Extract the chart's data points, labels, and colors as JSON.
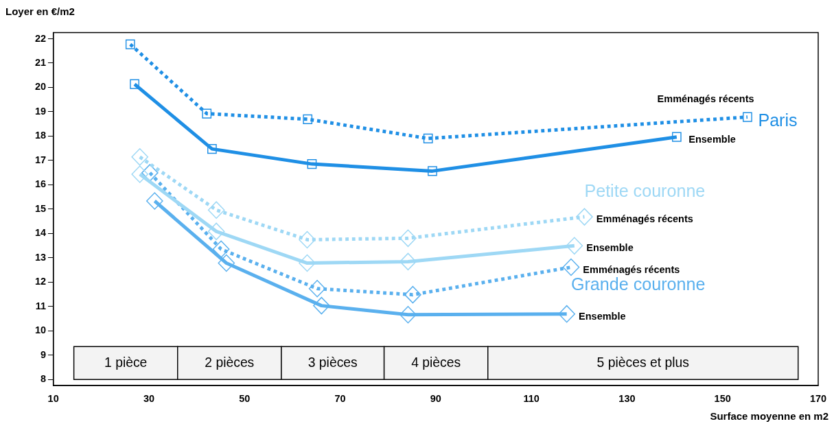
{
  "chart_data": {
    "type": "line",
    "xlabel": "Surface moyenne en m2",
    "ylabel": "Loyer en €/m2",
    "xlim": [
      10,
      170
    ],
    "xticks": [
      10,
      30,
      50,
      70,
      90,
      110,
      130,
      150,
      170
    ],
    "ylim": [
      7.75,
      22.25
    ],
    "yticks": [
      8,
      9,
      10,
      11,
      12,
      13,
      14,
      15,
      16,
      17,
      18,
      19,
      20,
      21,
      22
    ],
    "grid": false,
    "legend": false,
    "series": [
      {
        "name": "Emménagés récents",
        "color": "#1f8fe5",
        "marker": "square",
        "line_style": "dotted",
        "x": [
          26.1,
          42.1,
          63.2,
          88.4,
          155.2
        ],
        "values": [
          21.77,
          18.92,
          18.69,
          17.9,
          18.78
        ]
      },
      {
        "name": "Ensemble",
        "color": "#1f8fe5",
        "marker": "square",
        "line_style": "solid",
        "x": [
          27.0,
          43.2,
          64.1,
          89.3,
          140.4
        ],
        "values": [
          20.13,
          17.47,
          16.85,
          16.56,
          17.96
        ]
      },
      {
        "name": "Emménagés récents",
        "color": "#9ed8f5",
        "marker": "diamond",
        "line_style": "dotted",
        "x": [
          28.1,
          44.1,
          63.1,
          84.2,
          121.1
        ],
        "values": [
          17.14,
          14.96,
          13.74,
          13.8,
          14.68
        ]
      },
      {
        "name": "Ensemble",
        "color": "#9ed8f5",
        "marker": "diamond",
        "line_style": "solid",
        "x": [
          28.1,
          44.1,
          63.1,
          84.2,
          119.0
        ],
        "values": [
          16.43,
          14.08,
          12.78,
          12.84,
          13.49
        ]
      },
      {
        "name": "Emménagés récents",
        "color": "#5ab0ee",
        "marker": "diamond",
        "line_style": "dotted",
        "x": [
          30.2,
          45.1,
          65.2,
          85.2,
          118.3
        ],
        "values": [
          16.49,
          13.35,
          11.73,
          11.48,
          12.61
        ]
      },
      {
        "name": "Ensemble",
        "color": "#5ab0ee",
        "marker": "diamond",
        "line_style": "solid",
        "x": [
          31.2,
          46.2,
          66.1,
          84.2,
          117.4
        ],
        "values": [
          15.33,
          12.78,
          11.03,
          10.66,
          10.69
        ]
      }
    ],
    "annotations": [
      "Paris",
      "Petite couronne",
      "Grande couronne"
    ],
    "bands": [
      {
        "axis": "x",
        "from": 14.3,
        "to": 36.0,
        "label": "1 pièce"
      },
      {
        "axis": "x",
        "from": 36.0,
        "to": 57.7,
        "label": "2 pièces"
      },
      {
        "axis": "x",
        "from": 57.7,
        "to": 79.2,
        "label": "3 pièces"
      },
      {
        "axis": "x",
        "from": 79.2,
        "to": 100.9,
        "label": "4 pièces"
      },
      {
        "axis": "x",
        "from": 100.9,
        "to": 165.8,
        "label": "5 pièces et plus"
      }
    ]
  }
}
